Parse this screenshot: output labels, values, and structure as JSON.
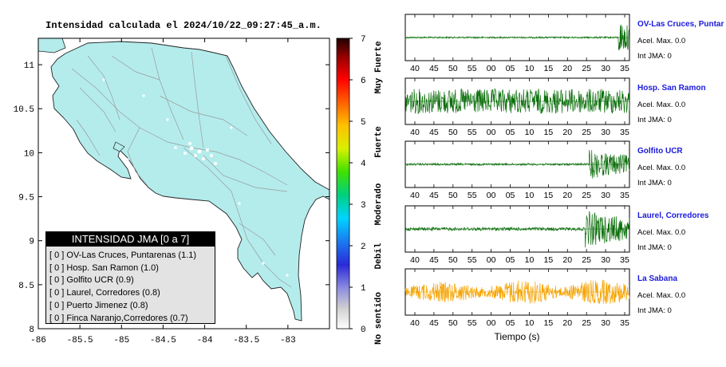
{
  "map": {
    "title": "Intensidad calculada el 2024/10/22_09:27:45_a.m.",
    "x_ticks": [
      "-86",
      "-85.5",
      "-85",
      "-84.5",
      "-84",
      "-83.5",
      "-83"
    ],
    "y_ticks": [
      "11",
      "10.5",
      "10",
      "9.5",
      "9",
      "8.5",
      "8"
    ],
    "colorbar": {
      "ticks": [
        "0",
        "1",
        "2",
        "3",
        "4",
        "5",
        "6",
        "7"
      ],
      "labels": [
        "No sentido",
        "Debil",
        "Moderado",
        "Fuerte",
        "Muy Fuerte"
      ]
    },
    "legend": {
      "header": "INTENSIDAD JMA [0 a 7]",
      "items": [
        "[ 0 ]  OV-Las Cruces, Puntarenas (1.1)",
        "[ 0 ]  Hosp. San Ramon (1.0)",
        "[ 0 ]  Golfito UCR (0.9)",
        "[ 0 ]  Laurel, Corredores (0.8)",
        "[ 0 ]  Puerto Jimenez (0.8)",
        "[ 0 ]  Finca Naranjo,Corredores (0.7)"
      ]
    }
  },
  "waveforms": {
    "xlabel": "Tiempo (s)",
    "colors": {
      "trace": "#0a6e0a",
      "highlight": "#f5a300",
      "station": "#1a1adc"
    },
    "stations": [
      {
        "name": "OV-Las Cruces, Puntar",
        "acel": "Acel. Max. 0.0",
        "int": "Int JMA: 0",
        "ticks": [
          "40",
          "45",
          "50",
          "55",
          "00",
          "05",
          "10",
          "15",
          "20",
          "25",
          "30",
          "35"
        ],
        "onset": 0.95,
        "noise": 0.04,
        "burst": 0.95,
        "color": "trace"
      },
      {
        "name": "Hosp. San Ramon",
        "acel": "Acel. Max. 0.0",
        "int": "Int JMA: 0",
        "ticks": [
          "40",
          "45",
          "50",
          "55",
          "00",
          "05",
          "10",
          "15",
          "20",
          "25",
          "30",
          "35"
        ],
        "onset": 2,
        "noise": 0.6,
        "burst": 0.6,
        "color": "trace"
      },
      {
        "name": "Golfito UCR",
        "acel": "Acel. Max. 0.0",
        "int": "Int JMA: 0",
        "ticks": [
          "40",
          "45",
          "50",
          "55",
          "00",
          "05",
          "10",
          "15",
          "20",
          "25",
          "30",
          "35"
        ],
        "onset": 0.82,
        "noise": 0.05,
        "burst": 0.75,
        "color": "trace"
      },
      {
        "name": "Laurel, Corredores",
        "acel": "Acel. Max. 0.0",
        "int": "Int JMA: 0",
        "ticks": [
          "40",
          "45",
          "50",
          "55",
          "00",
          "05",
          "10",
          "15",
          "20",
          "25",
          "30",
          "35"
        ],
        "onset": 0.8,
        "noise": 0.08,
        "burst": 0.95,
        "color": "trace"
      },
      {
        "name": "La Sabana",
        "acel": "Acel. Max. 0.0",
        "int": "Int JMA: 0",
        "ticks": [
          "40",
          "45",
          "50",
          "55",
          "00",
          "05",
          "10",
          "15",
          "20",
          "25",
          "30",
          "35"
        ],
        "onset": 2,
        "noise": 0.35,
        "burst": 0.35,
        "color": "highlight"
      }
    ]
  },
  "chart_data": [
    {
      "type": "map",
      "title": "Intensidad calculada el 2024/10/22_09:27:45_a.m.",
      "xlim": [
        -86,
        -82.5
      ],
      "ylim": [
        8,
        11.3
      ],
      "colorbar_range": [
        0,
        7
      ]
    },
    {
      "type": "line",
      "xlabel": "Tiempo (s)",
      "series": [
        {
          "name": "OV-Las Cruces, Puntar"
        },
        {
          "name": "Hosp. San Ramon"
        },
        {
          "name": "Golfito UCR"
        },
        {
          "name": "Laurel, Corredores"
        },
        {
          "name": "La Sabana"
        }
      ]
    }
  ]
}
